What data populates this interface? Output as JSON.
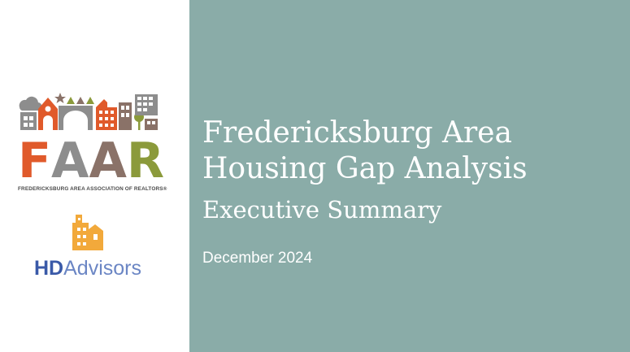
{
  "slide": {
    "title_line1": "Fredericksburg Area",
    "title_line2": "Housing Gap Analysis",
    "subtitle": "Executive Summary",
    "date": "December 2024"
  },
  "logos": {
    "faar": {
      "letters": [
        "F",
        "A",
        "A",
        "R"
      ],
      "letter_colors": [
        "#e05a2b",
        "#8d8d8d",
        "#8a7268",
        "#8b9a3b"
      ],
      "subtitle": "FREDERICKSBURG AREA ASSOCIATION OF REALTORS®"
    },
    "hdadvisors": {
      "part_bold": "HD",
      "part_light": "Advisors",
      "icon_color": "#f2a93b"
    }
  },
  "colors": {
    "panel": "#8aaca8",
    "text": "#ffffff"
  }
}
